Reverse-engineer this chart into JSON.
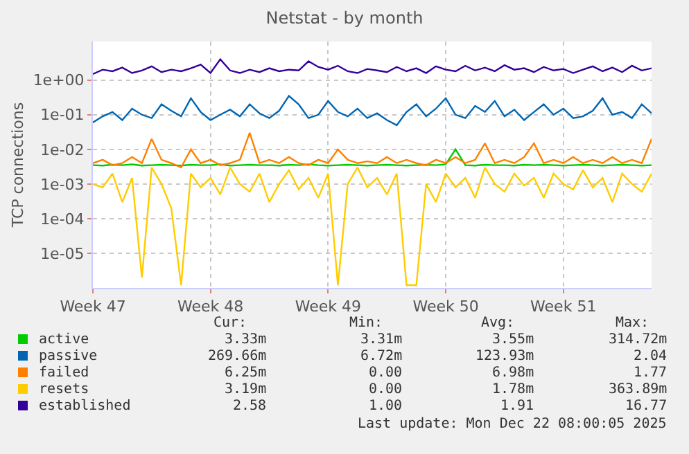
{
  "chart_data": {
    "type": "line",
    "title": "Netstat - by month",
    "ylabel": "TCP connections",
    "log": true,
    "grid": true,
    "legend": "bottom left",
    "marker": "none",
    "line_style": "solid",
    "categories": [
      "Week 47",
      null,
      null,
      null,
      null,
      null,
      null,
      null,
      null,
      null,
      null,
      null,
      "Week 48",
      null,
      null,
      null,
      null,
      null,
      null,
      null,
      null,
      null,
      null,
      null,
      "Week 49",
      null,
      null,
      null,
      null,
      null,
      null,
      null,
      null,
      null,
      null,
      null,
      "Week 50",
      null,
      null,
      null,
      null,
      null,
      null,
      null,
      null,
      null,
      null,
      null,
      "Week 51",
      null,
      null,
      null,
      null,
      null,
      null,
      null,
      null,
      null
    ],
    "ylim": [
      1e-06,
      13
    ],
    "yticks": [
      {
        "value": 1e-05,
        "label": "1e-05"
      },
      {
        "value": 0.0001,
        "label": "1e-04"
      },
      {
        "value": 0.001,
        "label": "1e-03"
      },
      {
        "value": 0.01,
        "label": "1e-02"
      },
      {
        "value": 0.1,
        "label": "1e-01"
      },
      {
        "value": 1,
        "label": "1e+00"
      }
    ],
    "series": [
      {
        "name": "active",
        "color": "#00cc00",
        "values": [
          0.0035,
          0.0034,
          0.0036,
          0.0035,
          0.0037,
          0.0034,
          0.0035,
          0.0036,
          0.0035,
          0.0034,
          0.0036,
          0.0035,
          0.0035,
          0.0037,
          0.0034,
          0.0035,
          0.0036,
          0.0035,
          0.0035,
          0.0034,
          0.0036,
          0.0035,
          0.0037,
          0.0035,
          0.0034,
          0.0035,
          0.0036,
          0.0035,
          0.0034,
          0.0035,
          0.0036,
          0.0035,
          0.0034,
          0.0035,
          0.0036,
          0.0035,
          0.0037,
          0.01,
          0.0035,
          0.0034,
          0.0036,
          0.0035,
          0.0035,
          0.0034,
          0.0036,
          0.0035,
          0.0036,
          0.0035,
          0.0034,
          0.0035,
          0.0036,
          0.0035,
          0.0034,
          0.0035,
          0.0036,
          0.0035,
          0.0034,
          0.0035
        ]
      },
      {
        "name": "passive",
        "color": "#0066b3",
        "values": [
          0.06,
          0.09,
          0.12,
          0.07,
          0.15,
          0.1,
          0.08,
          0.2,
          0.13,
          0.09,
          0.3,
          0.12,
          0.07,
          0.1,
          0.14,
          0.09,
          0.2,
          0.11,
          0.08,
          0.13,
          0.35,
          0.2,
          0.08,
          0.1,
          0.25,
          0.12,
          0.09,
          0.15,
          0.08,
          0.11,
          0.07,
          0.05,
          0.12,
          0.2,
          0.09,
          0.15,
          0.3,
          0.1,
          0.08,
          0.18,
          0.12,
          0.25,
          0.09,
          0.14,
          0.07,
          0.12,
          0.2,
          0.1,
          0.15,
          0.08,
          0.09,
          0.13,
          0.3,
          0.1,
          0.12,
          0.08,
          0.2,
          0.11
        ]
      },
      {
        "name": "failed",
        "color": "#ff8000",
        "values": [
          0.004,
          0.005,
          0.0035,
          0.004,
          0.006,
          0.004,
          0.02,
          0.005,
          0.004,
          0.003,
          0.01,
          0.004,
          0.005,
          0.0035,
          0.004,
          0.005,
          0.03,
          0.004,
          0.005,
          0.004,
          0.006,
          0.004,
          0.0035,
          0.005,
          0.004,
          0.01,
          0.005,
          0.004,
          0.0045,
          0.004,
          0.006,
          0.004,
          0.005,
          0.004,
          0.0035,
          0.005,
          0.004,
          0.006,
          0.004,
          0.005,
          0.015,
          0.004,
          0.005,
          0.004,
          0.006,
          0.015,
          0.004,
          0.005,
          0.004,
          0.006,
          0.004,
          0.005,
          0.004,
          0.006,
          0.004,
          0.005,
          0.004,
          0.02
        ]
      },
      {
        "name": "resets",
        "color": "#ffcc00",
        "values": [
          0.001,
          0.0008,
          0.002,
          0.0003,
          0.0015,
          2e-06,
          0.003,
          0.001,
          0.0002,
          1.2e-06,
          0.002,
          0.0008,
          0.0015,
          0.0005,
          0.003,
          0.001,
          0.0006,
          0.002,
          0.0003,
          0.001,
          0.0025,
          0.0007,
          0.0015,
          0.0004,
          0.002,
          1.2e-06,
          0.001,
          0.003,
          0.0008,
          0.0015,
          0.0005,
          0.002,
          1.2e-06,
          1.2e-06,
          0.001,
          0.0003,
          0.002,
          0.0008,
          0.0015,
          0.0004,
          0.003,
          0.001,
          0.0006,
          0.002,
          0.0009,
          0.0015,
          0.0004,
          0.002,
          0.001,
          0.0007,
          0.0025,
          0.0008,
          0.0015,
          0.0003,
          0.002,
          0.001,
          0.0006,
          0.002
        ]
      },
      {
        "name": "established",
        "color": "#330099",
        "values": [
          1.5,
          2.0,
          1.8,
          2.3,
          1.6,
          1.9,
          2.5,
          1.7,
          2.0,
          1.8,
          2.2,
          2.8,
          1.6,
          4.0,
          1.9,
          1.6,
          2.0,
          1.7,
          2.2,
          1.8,
          2.0,
          1.9,
          3.5,
          2.4,
          2.0,
          2.6,
          1.8,
          1.6,
          2.1,
          1.9,
          1.7,
          2.4,
          1.8,
          2.2,
          1.6,
          2.5,
          2.0,
          1.8,
          2.6,
          1.9,
          2.3,
          1.8,
          2.7,
          2.0,
          2.2,
          1.7,
          2.4,
          1.9,
          2.1,
          1.6,
          2.0,
          2.5,
          1.8,
          2.3,
          1.7,
          2.6,
          1.9,
          2.2
        ]
      }
    ],
    "annotations": [
      "Cur:",
      "Min:",
      "Avg:",
      "Max:",
      "3.33m",
      "3.31m",
      "3.55m",
      "314.72m",
      "269.66m",
      "6.72m",
      "123.93m",
      "2.04",
      "6.25m",
      "0.00",
      "6.98m",
      "1.77",
      "3.19m",
      "0.00",
      "1.78m",
      "363.89m",
      "2.58",
      "1.00",
      "1.91",
      "16.77",
      "Last update: Mon Dec 22 08:00:05 2025"
    ]
  }
}
